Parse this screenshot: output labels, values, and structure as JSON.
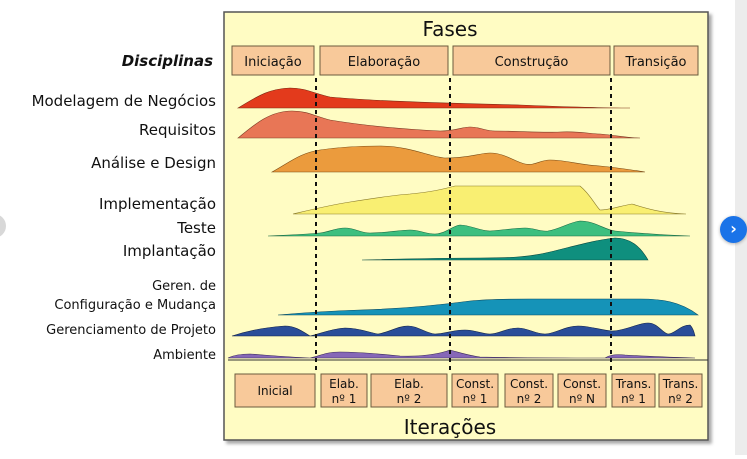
{
  "diagram": {
    "title_top": "Fases",
    "title_bottom": "Iterações",
    "disciplines_header": "Disciplinas",
    "phases": [
      "Iniciação",
      "Elaboração",
      "Construção",
      "Transição"
    ],
    "disciplines": [
      {
        "label": "Modelagem de Negócios",
        "color": "#e33a1c"
      },
      {
        "label": "Requisitos",
        "color": "#e87656"
      },
      {
        "label": "Análise e Design",
        "color": "#eb9b3d"
      },
      {
        "label": "Implementação",
        "color": "#f9ef72"
      },
      {
        "label": "Teste",
        "color": "#3dbf7f"
      },
      {
        "label": "Implantação",
        "color": "#0f8f7e"
      },
      {
        "label": "Geren. de",
        "color": "#1593b8"
      },
      {
        "label": "Configuração e Mudança",
        "color": "#1593b8"
      },
      {
        "label": "Gerenciamento de Projeto",
        "color": "#2a4d99"
      },
      {
        "label": "Ambiente",
        "color": "#8667b7"
      }
    ],
    "iterations": [
      {
        "l1": "Inicial",
        "l2": ""
      },
      {
        "l1": "Elab.",
        "l2": "nº 1"
      },
      {
        "l1": "Elab.",
        "l2": "nº 2"
      },
      {
        "l1": "Const.",
        "l2": "nº 1"
      },
      {
        "l1": "Const.",
        "l2": "nº 2"
      },
      {
        "l1": "Const.",
        "l2": "nº N"
      },
      {
        "l1": "Trans.",
        "l2": "nº 1"
      },
      {
        "l1": "Trans.",
        "l2": "nº 2"
      }
    ],
    "colors": {
      "panel": "#fffcc3",
      "box": "#f8c99a",
      "box_border": "#6b5a3e",
      "frame": "#555555"
    }
  }
}
